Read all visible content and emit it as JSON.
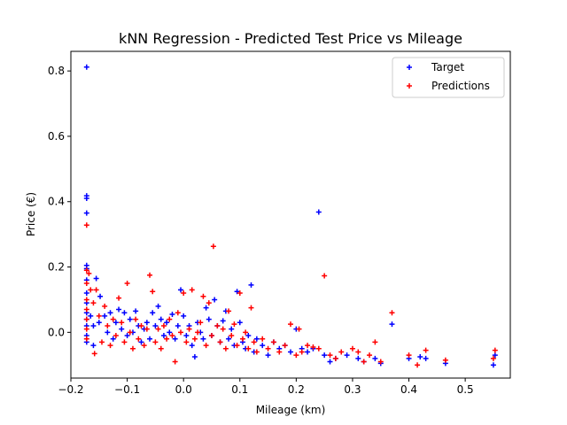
{
  "chart_data": {
    "type": "scatter",
    "title": "kNN Regression - Predicted Test Price vs Mileage",
    "xlabel": "Mileage (km)",
    "ylabel": "Price (€)",
    "xlim": [
      -0.2,
      0.58
    ],
    "ylim": [
      -0.14,
      0.86
    ],
    "xticks": [
      "−0.2",
      "−0.1",
      "0.0",
      "0.1",
      "0.2",
      "0.3",
      "0.4",
      "0.5"
    ],
    "xtick_values": [
      -0.2,
      -0.1,
      0.0,
      0.1,
      0.2,
      0.3,
      0.4,
      0.5
    ],
    "yticks": [
      "0.0",
      "0.2",
      "0.4",
      "0.6",
      "0.8"
    ],
    "ytick_values": [
      0.0,
      0.2,
      0.4,
      0.6,
      0.8
    ],
    "grid": false,
    "legend_position": "top-right",
    "marker": "plus",
    "series": [
      {
        "name": "Target",
        "color": "#0000ff",
        "points": [
          [
            -0.172,
            0.812
          ],
          [
            -0.172,
            0.418
          ],
          [
            -0.172,
            0.41
          ],
          [
            -0.172,
            0.365
          ],
          [
            -0.172,
            0.205
          ],
          [
            -0.172,
            0.195
          ],
          [
            -0.172,
            0.16
          ],
          [
            -0.172,
            0.12
          ],
          [
            -0.172,
            0.09
          ],
          [
            -0.172,
            0.06
          ],
          [
            -0.172,
            0.04
          ],
          [
            -0.172,
            0.02
          ],
          [
            -0.172,
            -0.01
          ],
          [
            -0.172,
            -0.03
          ],
          [
            -0.165,
            0.05
          ],
          [
            -0.16,
            0.02
          ],
          [
            -0.16,
            -0.04
          ],
          [
            -0.155,
            0.165
          ],
          [
            -0.15,
            0.03
          ],
          [
            -0.148,
            0.11
          ],
          [
            -0.14,
            0.05
          ],
          [
            -0.135,
            0.0
          ],
          [
            -0.13,
            0.06
          ],
          [
            -0.125,
            -0.02
          ],
          [
            -0.12,
            0.03
          ],
          [
            -0.115,
            0.07
          ],
          [
            -0.11,
            0.01
          ],
          [
            -0.105,
            0.06
          ],
          [
            -0.1,
            -0.01
          ],
          [
            -0.095,
            0.04
          ],
          [
            -0.09,
            0.0
          ],
          [
            -0.085,
            0.065
          ],
          [
            -0.08,
            0.02
          ],
          [
            -0.075,
            -0.03
          ],
          [
            -0.07,
            0.01
          ],
          [
            -0.065,
            0.03
          ],
          [
            -0.06,
            -0.02
          ],
          [
            -0.055,
            0.06
          ],
          [
            -0.05,
            0.02
          ],
          [
            -0.045,
            0.08
          ],
          [
            -0.04,
            0.04
          ],
          [
            -0.035,
            -0.01
          ],
          [
            -0.03,
            0.03
          ],
          [
            -0.025,
            0.0
          ],
          [
            -0.02,
            0.055
          ],
          [
            -0.015,
            -0.02
          ],
          [
            -0.01,
            0.02
          ],
          [
            -0.005,
            0.13
          ],
          [
            0.0,
            0.05
          ],
          [
            0.005,
            -0.01
          ],
          [
            0.01,
            0.02
          ],
          [
            0.015,
            -0.04
          ],
          [
            0.02,
            -0.075
          ],
          [
            0.025,
            0.03
          ],
          [
            0.03,
            0.0
          ],
          [
            0.035,
            -0.02
          ],
          [
            0.04,
            0.075
          ],
          [
            0.045,
            0.04
          ],
          [
            0.05,
            -0.01
          ],
          [
            0.055,
            0.1
          ],
          [
            0.06,
            0.02
          ],
          [
            0.065,
            -0.03
          ],
          [
            0.07,
            0.035
          ],
          [
            0.075,
            0.065
          ],
          [
            0.08,
            -0.02
          ],
          [
            0.085,
            0.01
          ],
          [
            0.09,
            -0.04
          ],
          [
            0.095,
            0.125
          ],
          [
            0.1,
            0.03
          ],
          [
            0.105,
            -0.03
          ],
          [
            0.11,
            -0.05
          ],
          [
            0.115,
            -0.01
          ],
          [
            0.12,
            0.145
          ],
          [
            0.125,
            -0.06
          ],
          [
            0.13,
            -0.02
          ],
          [
            0.14,
            -0.04
          ],
          [
            0.15,
            -0.07
          ],
          [
            0.16,
            -0.03
          ],
          [
            0.17,
            -0.05
          ],
          [
            0.18,
            -0.04
          ],
          [
            0.19,
            -0.06
          ],
          [
            0.2,
            0.01
          ],
          [
            0.21,
            -0.05
          ],
          [
            0.22,
            -0.06
          ],
          [
            0.23,
            -0.05
          ],
          [
            0.24,
            0.368
          ],
          [
            0.25,
            -0.07
          ],
          [
            0.26,
            -0.09
          ],
          [
            0.27,
            -0.08
          ],
          [
            0.29,
            -0.07
          ],
          [
            0.31,
            -0.08
          ],
          [
            0.32,
            -0.09
          ],
          [
            0.34,
            -0.08
          ],
          [
            0.35,
            -0.095
          ],
          [
            0.37,
            0.025
          ],
          [
            0.4,
            -0.08
          ],
          [
            0.42,
            -0.075
          ],
          [
            0.43,
            -0.08
          ],
          [
            0.465,
            -0.095
          ],
          [
            0.55,
            -0.1
          ],
          [
            0.553,
            -0.07
          ]
        ]
      },
      {
        "name": "Predictions",
        "color": "#ff0000",
        "points": [
          [
            -0.172,
            0.328
          ],
          [
            -0.172,
            0.19
          ],
          [
            -0.172,
            0.15
          ],
          [
            -0.172,
            0.1
          ],
          [
            -0.172,
            0.07
          ],
          [
            -0.172,
            0.04
          ],
          [
            -0.172,
            0.01
          ],
          [
            -0.172,
            -0.02
          ],
          [
            -0.168,
            0.18
          ],
          [
            -0.165,
            0.13
          ],
          [
            -0.16,
            0.09
          ],
          [
            -0.158,
            -0.065
          ],
          [
            -0.155,
            0.13
          ],
          [
            -0.15,
            0.05
          ],
          [
            -0.145,
            -0.03
          ],
          [
            -0.14,
            0.08
          ],
          [
            -0.135,
            0.02
          ],
          [
            -0.13,
            -0.04
          ],
          [
            -0.125,
            0.04
          ],
          [
            -0.12,
            -0.01
          ],
          [
            -0.115,
            0.105
          ],
          [
            -0.11,
            0.03
          ],
          [
            -0.105,
            -0.03
          ],
          [
            -0.1,
            0.15
          ],
          [
            -0.095,
            0.0
          ],
          [
            -0.09,
            -0.05
          ],
          [
            -0.085,
            0.04
          ],
          [
            -0.08,
            -0.02
          ],
          [
            -0.075,
            0.02
          ],
          [
            -0.07,
            -0.04
          ],
          [
            -0.065,
            0.01
          ],
          [
            -0.06,
            0.175
          ],
          [
            -0.055,
            0.125
          ],
          [
            -0.05,
            -0.03
          ],
          [
            -0.045,
            0.01
          ],
          [
            -0.04,
            -0.05
          ],
          [
            -0.035,
            0.02
          ],
          [
            -0.03,
            -0.02
          ],
          [
            -0.025,
            0.04
          ],
          [
            -0.02,
            -0.01
          ],
          [
            -0.015,
            -0.09
          ],
          [
            -0.01,
            0.06
          ],
          [
            -0.005,
            0.0
          ],
          [
            0.0,
            0.12
          ],
          [
            0.005,
            -0.03
          ],
          [
            0.01,
            0.01
          ],
          [
            0.015,
            0.13
          ],
          [
            0.02,
            -0.02
          ],
          [
            0.025,
            0.0
          ],
          [
            0.03,
            0.03
          ],
          [
            0.035,
            0.11
          ],
          [
            0.04,
            -0.04
          ],
          [
            0.045,
            0.09
          ],
          [
            0.05,
            -0.01
          ],
          [
            0.053,
            0.263
          ],
          [
            0.06,
            0.02
          ],
          [
            0.065,
            -0.03
          ],
          [
            0.07,
            0.01
          ],
          [
            0.075,
            -0.05
          ],
          [
            0.08,
            0.065
          ],
          [
            0.085,
            -0.01
          ],
          [
            0.09,
            0.025
          ],
          [
            0.095,
            -0.04
          ],
          [
            0.1,
            0.12
          ],
          [
            0.105,
            -0.02
          ],
          [
            0.11,
            0.0
          ],
          [
            0.115,
            -0.05
          ],
          [
            0.12,
            0.075
          ],
          [
            0.125,
            -0.03
          ],
          [
            0.13,
            -0.06
          ],
          [
            0.14,
            -0.02
          ],
          [
            0.15,
            -0.05
          ],
          [
            0.16,
            -0.03
          ],
          [
            0.17,
            -0.06
          ],
          [
            0.18,
            -0.04
          ],
          [
            0.19,
            0.025
          ],
          [
            0.2,
            -0.07
          ],
          [
            0.205,
            0.01
          ],
          [
            0.21,
            -0.06
          ],
          [
            0.22,
            -0.04
          ],
          [
            0.23,
            -0.045
          ],
          [
            0.24,
            -0.05
          ],
          [
            0.25,
            0.173
          ],
          [
            0.26,
            -0.07
          ],
          [
            0.27,
            -0.08
          ],
          [
            0.28,
            -0.06
          ],
          [
            0.3,
            -0.05
          ],
          [
            0.31,
            -0.06
          ],
          [
            0.32,
            -0.09
          ],
          [
            0.33,
            -0.07
          ],
          [
            0.34,
            -0.03
          ],
          [
            0.35,
            -0.09
          ],
          [
            0.37,
            0.06
          ],
          [
            0.4,
            -0.07
          ],
          [
            0.415,
            -0.1
          ],
          [
            0.43,
            -0.055
          ],
          [
            0.465,
            -0.085
          ],
          [
            0.55,
            -0.08
          ],
          [
            0.553,
            -0.055
          ]
        ]
      }
    ]
  }
}
